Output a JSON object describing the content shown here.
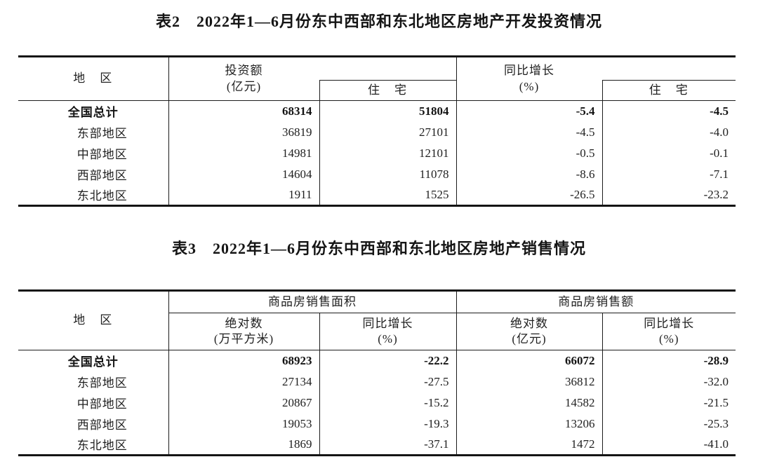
{
  "colors": {
    "background": "#ffffff",
    "text": "#1f1f1f",
    "border": "#1a1a1a"
  },
  "table2": {
    "title": "表2　2022年1—6月份东中西部和东北地区房地产开发投资情况",
    "header": {
      "region": "地　区",
      "group1_line1": "投资额",
      "group1_line2": "(亿元)",
      "group1_sub": "住　宅",
      "group2_line1": "同比增长",
      "group2_line2": "(%)",
      "group2_sub": "住　宅"
    },
    "rows": [
      {
        "region": "全国总计",
        "values": [
          "68314",
          "51804",
          "-5.4",
          "-4.5"
        ]
      },
      {
        "region": "东部地区",
        "values": [
          "36819",
          "27101",
          "-4.5",
          "-4.0"
        ]
      },
      {
        "region": "中部地区",
        "values": [
          "14981",
          "12101",
          "-0.5",
          "-0.1"
        ]
      },
      {
        "region": "西部地区",
        "values": [
          "14604",
          "11078",
          "-8.6",
          "-7.1"
        ]
      },
      {
        "region": "东北地区",
        "values": [
          "1911",
          "1525",
          "-26.5",
          "-23.2"
        ]
      }
    ]
  },
  "table3": {
    "title": "表3　2022年1—6月份东中西部和东北地区房地产销售情况",
    "header": {
      "region": "地　区",
      "group1": "商品房销售面积",
      "group2": "商品房销售额",
      "sub1_line1": "绝对数",
      "sub1_line2": "(万平方米)",
      "sub2_line1": "同比增长",
      "sub2_line2": "(%)",
      "sub3_line1": "绝对数",
      "sub3_line2": "(亿元)",
      "sub4_line1": "同比增长",
      "sub4_line2": "(%)"
    },
    "rows": [
      {
        "region": "全国总计",
        "values": [
          "68923",
          "-22.2",
          "66072",
          "-28.9"
        ]
      },
      {
        "region": "东部地区",
        "values": [
          "27134",
          "-27.5",
          "36812",
          "-32.0"
        ]
      },
      {
        "region": "中部地区",
        "values": [
          "20867",
          "-15.2",
          "14582",
          "-21.5"
        ]
      },
      {
        "region": "西部地区",
        "values": [
          "19053",
          "-19.3",
          "13206",
          "-25.3"
        ]
      },
      {
        "region": "东北地区",
        "values": [
          "1869",
          "-37.1",
          "1472",
          "-41.0"
        ]
      }
    ]
  }
}
